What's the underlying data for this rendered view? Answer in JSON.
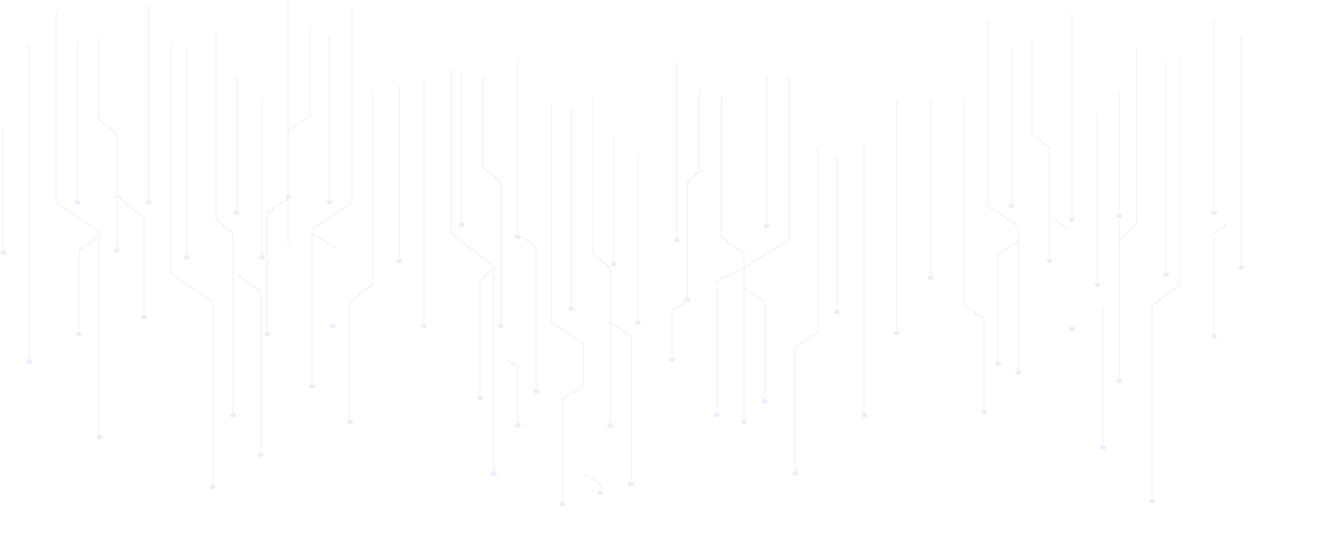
{
  "background": {
    "pattern": "circuit-lines",
    "background_color": "#ffffff",
    "line_color": "#eef0f8",
    "dot_color": "#eef0f8"
  }
}
